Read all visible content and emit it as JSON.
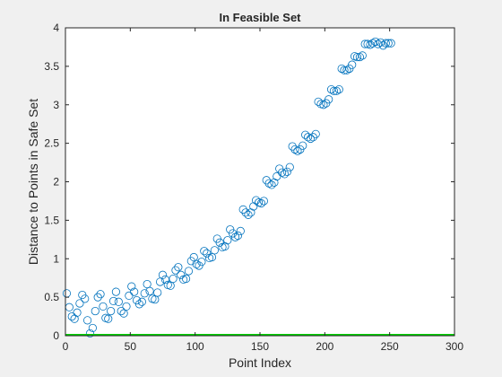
{
  "chart_data": {
    "type": "scatter",
    "title": "In Feasible Set",
    "xlabel": "Point Index",
    "ylabel": "Distance to Points in Safe Set",
    "xlim": [
      0,
      300
    ],
    "ylim": [
      0,
      4
    ],
    "xticks": [
      0,
      50,
      100,
      150,
      200,
      250,
      300
    ],
    "xtick_labels": [
      "0",
      "50",
      "100",
      "150",
      "200",
      "250",
      "300"
    ],
    "yticks": [
      0,
      0.5,
      1,
      1.5,
      2,
      2.5,
      3,
      3.5,
      4
    ],
    "ytick_labels": [
      "0",
      "0.5",
      "1",
      "1.5",
      "2",
      "2.5",
      "3",
      "3.5",
      "4"
    ],
    "grid": false,
    "colors": {
      "figure_background": "#f0f0f0",
      "axes_background": "#ffffff",
      "axes_edge": "#262626",
      "marker": "#0072bd",
      "reference_line": "#00d000"
    },
    "reference_line": {
      "y": 0,
      "x_range": [
        0,
        300
      ]
    },
    "series": [
      {
        "marker": "circle-open",
        "x": [
          1,
          3,
          5,
          7,
          9,
          11,
          13,
          15,
          17,
          19,
          21,
          23,
          25,
          27,
          29,
          31,
          33,
          35,
          37,
          39,
          41,
          43,
          45,
          47,
          49,
          51,
          53,
          55,
          57,
          59,
          61,
          63,
          65,
          67,
          69,
          71,
          73,
          75,
          77,
          79,
          81,
          83,
          85,
          87,
          89,
          91,
          93,
          95,
          97,
          99,
          101,
          103,
          105,
          107,
          109,
          111,
          113,
          115,
          117,
          119,
          121,
          123,
          125,
          127,
          129,
          131,
          133,
          135,
          137,
          139,
          141,
          143,
          145,
          147,
          149,
          151,
          153,
          155,
          157,
          159,
          161,
          163,
          165,
          167,
          169,
          171,
          173,
          175,
          177,
          179,
          181,
          183,
          185,
          187,
          189,
          191,
          193,
          195,
          197,
          199,
          201,
          203,
          205,
          207,
          209,
          211,
          213,
          215,
          217,
          219,
          221,
          223,
          225,
          227,
          229,
          231,
          233,
          235,
          237,
          239,
          241,
          243,
          245,
          247,
          249,
          251
        ],
        "y": [
          0.55,
          0.37,
          0.25,
          0.22,
          0.3,
          0.42,
          0.53,
          0.48,
          0.2,
          0.03,
          0.1,
          0.32,
          0.5,
          0.54,
          0.38,
          0.23,
          0.22,
          0.32,
          0.45,
          0.57,
          0.44,
          0.32,
          0.29,
          0.38,
          0.52,
          0.64,
          0.57,
          0.46,
          0.41,
          0.44,
          0.55,
          0.67,
          0.58,
          0.48,
          0.47,
          0.56,
          0.7,
          0.79,
          0.73,
          0.66,
          0.65,
          0.74,
          0.85,
          0.89,
          0.79,
          0.73,
          0.74,
          0.84,
          0.97,
          1.02,
          0.93,
          0.91,
          0.96,
          1.1,
          1.07,
          1.01,
          1.02,
          1.11,
          1.26,
          1.21,
          1.15,
          1.16,
          1.24,
          1.38,
          1.33,
          1.28,
          1.3,
          1.36,
          1.64,
          1.6,
          1.57,
          1.6,
          1.68,
          1.76,
          1.73,
          1.72,
          1.75,
          2.02,
          1.98,
          1.96,
          1.99,
          2.07,
          2.17,
          2.12,
          2.1,
          2.13,
          2.19,
          2.46,
          2.42,
          2.4,
          2.42,
          2.47,
          2.61,
          2.58,
          2.56,
          2.58,
          2.62,
          3.04,
          3.01,
          3.0,
          3.02,
          3.07,
          3.2,
          3.18,
          3.18,
          3.2,
          3.47,
          3.45,
          3.45,
          3.47,
          3.52,
          3.63,
          3.62,
          3.62,
          3.64,
          3.79,
          3.79,
          3.78,
          3.8,
          3.82,
          3.79,
          3.81,
          3.77,
          3.8,
          3.8,
          3.8
        ]
      }
    ]
  }
}
